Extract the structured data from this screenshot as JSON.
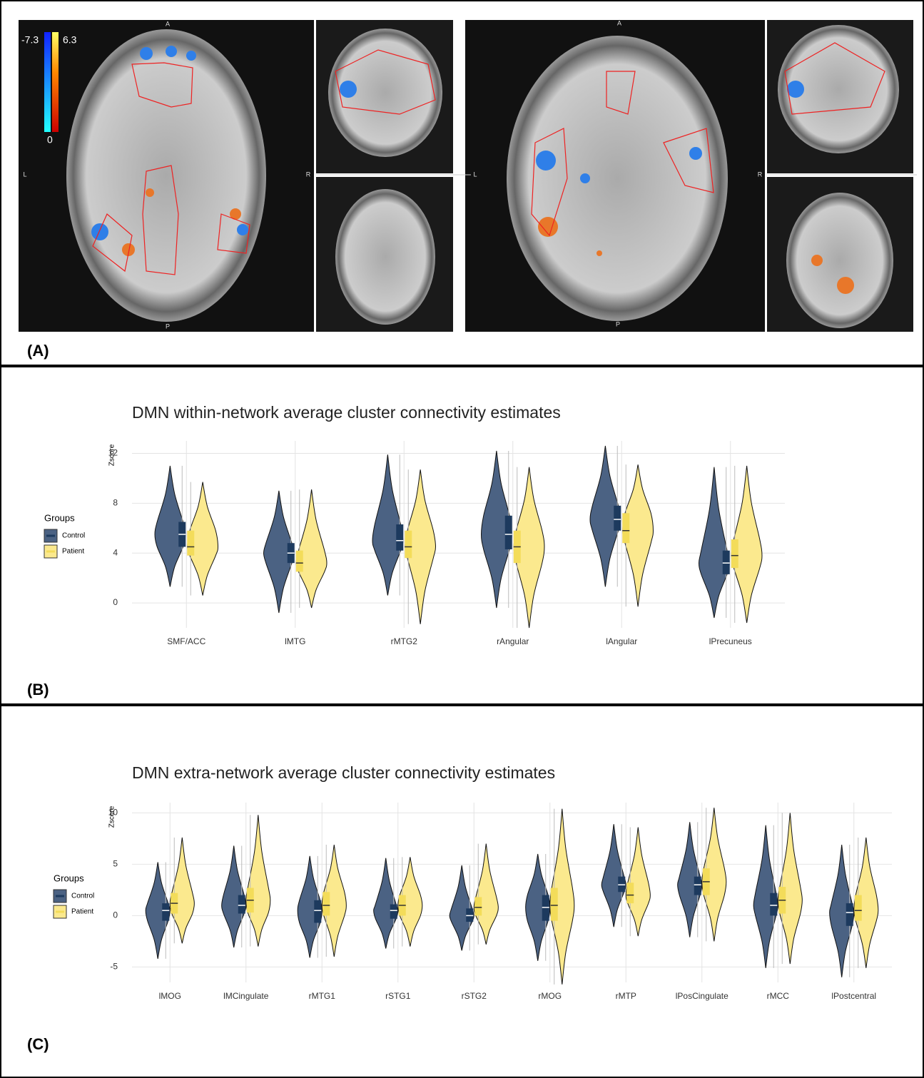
{
  "panel_labels": [
    "(A)",
    "(B)",
    "(C)"
  ],
  "panel_a": {
    "colorbar": {
      "min": "-7.3",
      "max": "6.3",
      "zero": "0"
    },
    "views": [
      {
        "top": "A",
        "left": "L",
        "right": "R",
        "bottom": "P"
      },
      {
        "top": "A",
        "left": "L",
        "right": "R",
        "bottom": "P"
      }
    ]
  },
  "chart_data": [
    {
      "type": "violin",
      "title": "DMN within-network average cluster connectivity estimates",
      "ylabel": "Zscore",
      "legend_title": "Groups",
      "categories": [
        "SMF/ACC",
        "lMTG",
        "rMTG2",
        "rAngular",
        "lAngular",
        "lPrecuneus"
      ],
      "ylim": [
        -2,
        13
      ],
      "yticks": [
        0,
        4,
        8,
        12
      ],
      "grid": true,
      "series": [
        {
          "name": "Control",
          "color": "#4b6283",
          "box_color": "#1d3a5e",
          "values": [
            5.5,
            4,
            5,
            5.5,
            6.7,
            3.2
          ],
          "q1": [
            4.5,
            3.2,
            4.2,
            4.3,
            5.8,
            2.3
          ],
          "q3": [
            6.5,
            4.8,
            6.3,
            7,
            7.8,
            4.2
          ],
          "min": [
            1.3,
            -0.8,
            0.6,
            -0.4,
            1.3,
            -1.2
          ],
          "max": [
            11,
            9,
            11.9,
            12.2,
            12.6,
            10.9
          ]
        },
        {
          "name": "Patient",
          "color": "#fbe98e",
          "box_color": "#f3dc5a",
          "values": [
            4.5,
            3.2,
            4.5,
            4.5,
            5.8,
            3.8
          ],
          "q1": [
            3.8,
            2.5,
            3.6,
            3.2,
            4.8,
            2.8
          ],
          "q3": [
            5.8,
            4.2,
            5.8,
            5.8,
            7.2,
            5.1
          ],
          "min": [
            0.6,
            -0.4,
            -1.7,
            -2,
            -0.3,
            -1.6
          ],
          "max": [
            9.7,
            9.1,
            10.7,
            10.9,
            11.1,
            11
          ]
        }
      ]
    },
    {
      "type": "violin",
      "title": "DMN extra-network average cluster connectivity estimates",
      "ylabel": "Zscore",
      "legend_title": "Groups",
      "categories": [
        "lMOG",
        "lMCingulate",
        "rMTG1",
        "rSTG1",
        "rSTG2",
        "rMOG",
        "rMTP",
        "lPosCingulate",
        "rMCC",
        "lPostcentral"
      ],
      "ylim": [
        -6.5,
        11
      ],
      "yticks": [
        -5,
        0,
        5,
        10
      ],
      "grid": true,
      "series": [
        {
          "name": "Control",
          "color": "#4b6283",
          "box_color": "#1d3a5e",
          "values": [
            0.5,
            1,
            0.5,
            0.5,
            0,
            0.8,
            3,
            3,
            1,
            0.3
          ],
          "q1": [
            -0.5,
            0.2,
            -0.7,
            -0.3,
            -0.6,
            -0.5,
            2.3,
            2,
            0,
            -1
          ],
          "q3": [
            1.2,
            2,
            1.5,
            1.1,
            0.7,
            2,
            3.8,
            3.8,
            2.2,
            1.2
          ],
          "min": [
            -4.2,
            -3.1,
            -4.1,
            -3.2,
            -3.4,
            -4.4,
            -1.1,
            -2.1,
            -5.1,
            -6
          ],
          "max": [
            5.2,
            6.8,
            5.8,
            5.6,
            4.9,
            6,
            8.9,
            9.1,
            8.8,
            6.9
          ]
        },
        {
          "name": "Patient",
          "color": "#fbe98e",
          "box_color": "#f3dc5a",
          "values": [
            1.2,
            1.5,
            1,
            1,
            0.8,
            1,
            2,
            3.3,
            1.5,
            0.5
          ],
          "q1": [
            0.2,
            0.3,
            0,
            0,
            0,
            -0.5,
            1.2,
            2,
            0.2,
            -0.5
          ],
          "q3": [
            2.2,
            2.7,
            2.3,
            2,
            1.8,
            2.7,
            3.2,
            4.6,
            2.8,
            2
          ],
          "min": [
            -2.7,
            -3,
            -4,
            -3,
            -2.8,
            -6.7,
            -2,
            -2.5,
            -4.7,
            -5.1
          ],
          "max": [
            7.6,
            9.8,
            6.9,
            5.7,
            7,
            10.4,
            8.6,
            10.5,
            10,
            7.6
          ]
        }
      ]
    }
  ]
}
